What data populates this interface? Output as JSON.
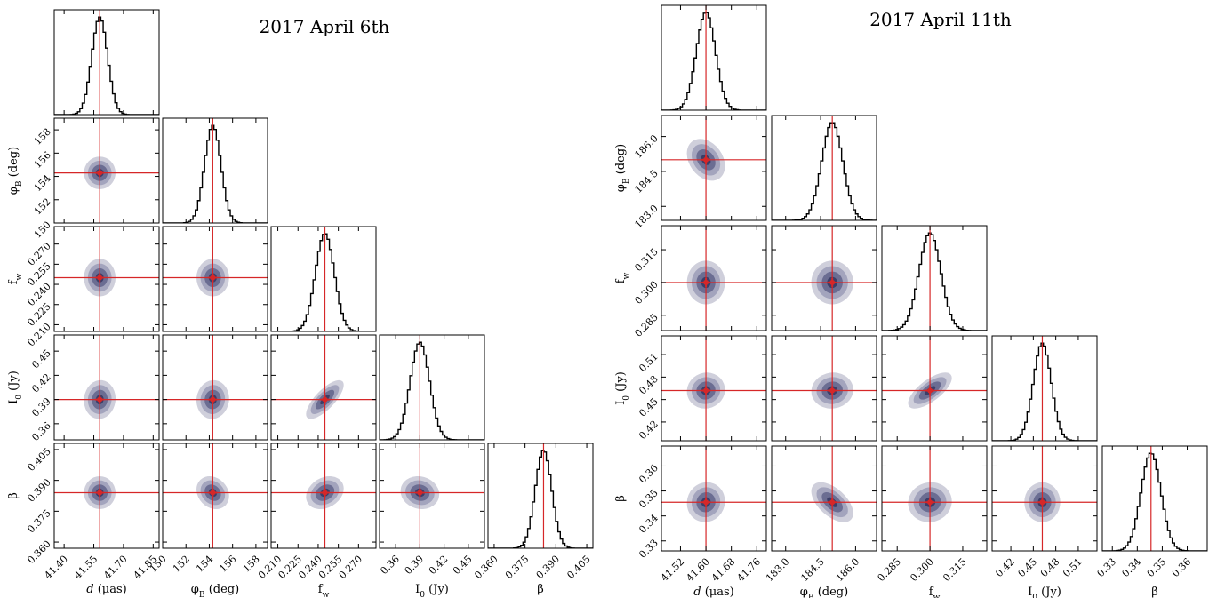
{
  "chart_data": [
    {
      "type": "corner",
      "title": "2017 April 6th",
      "parameters": [
        {
          "label": "d (μas)",
          "best": 41.58,
          "sigma": 0.04,
          "range": [
            41.35,
            41.88
          ],
          "ticks": [
            "41.40",
            "41.55",
            "41.70",
            "41.85"
          ],
          "tick_values": [
            41.4,
            41.55,
            41.7,
            41.85
          ]
        },
        {
          "label": "φB (deg)",
          "best": 154.3,
          "sigma": 0.7,
          "range": [
            150,
            159
          ],
          "ticks": [
            "150",
            "152",
            "154",
            "156",
            "158"
          ],
          "tick_values": [
            150,
            152,
            154,
            156,
            158
          ]
        },
        {
          "label": "fw",
          "best": 0.245,
          "sigma": 0.007,
          "range": [
            0.205,
            0.283
          ],
          "ticks": [
            "0.210",
            "0.225",
            "0.240",
            "0.255",
            "0.270"
          ],
          "tick_values": [
            0.21,
            0.225,
            0.24,
            0.255,
            0.27
          ]
        },
        {
          "label": "I0 (Jy)",
          "best": 0.39,
          "sigma": 0.012,
          "range": [
            0.34,
            0.47
          ],
          "ticks": [
            "0.36",
            "0.39",
            "0.42",
            "0.45"
          ],
          "tick_values": [
            0.36,
            0.39,
            0.42,
            0.45
          ]
        },
        {
          "label": "β",
          "best": 0.384,
          "sigma": 0.004,
          "range": [
            0.357,
            0.408
          ],
          "ticks": [
            "0.360",
            "0.375",
            "0.390",
            "0.405"
          ],
          "tick_values": [
            0.36,
            0.375,
            0.39,
            0.405
          ]
        }
      ],
      "correlations": [
        {
          "pair": [
            0,
            1
          ],
          "rho": 0.0
        },
        {
          "pair": [
            0,
            2
          ],
          "rho": 0.0
        },
        {
          "pair": [
            1,
            2
          ],
          "rho": 0.0
        },
        {
          "pair": [
            0,
            3
          ],
          "rho": 0.05
        },
        {
          "pair": [
            1,
            3
          ],
          "rho": 0.05
        },
        {
          "pair": [
            2,
            3
          ],
          "rho": 0.75
        },
        {
          "pair": [
            0,
            4
          ],
          "rho": 0.0
        },
        {
          "pair": [
            1,
            4
          ],
          "rho": -0.2
        },
        {
          "pair": [
            2,
            4
          ],
          "rho": 0.25
        },
        {
          "pair": [
            3,
            4
          ],
          "rho": -0.1
        }
      ],
      "contour_levels_sigma": [
        0.5,
        1.0,
        1.5,
        2.0
      ],
      "colors": {
        "contours": [
          "#cfcfdb",
          "#a3a4bd",
          "#6b6d92",
          "#3b3e68",
          "#08083a"
        ],
        "truth": "#d62728",
        "histogram": "#000000"
      }
    },
    {
      "type": "corner",
      "title": "2017 April 11th",
      "parameters": [
        {
          "label": "d (μas)",
          "best": 41.6,
          "sigma": 0.03,
          "range": [
            41.46,
            41.79
          ],
          "ticks": [
            "41.52",
            "41.60",
            "41.68",
            "41.76"
          ],
          "tick_values": [
            41.52,
            41.6,
            41.68,
            41.76
          ]
        },
        {
          "label": "φB (deg)",
          "best": 185.0,
          "sigma": 0.45,
          "range": [
            182.4,
            186.9
          ],
          "ticks": [
            "183.0",
            "184.5",
            "186.0"
          ],
          "tick_values": [
            183.0,
            184.5,
            186.0
          ]
        },
        {
          "label": "fw",
          "best": 0.3,
          "sigma": 0.005,
          "range": [
            0.278,
            0.326
          ],
          "ticks": [
            "0.285",
            "0.300",
            "0.315"
          ],
          "tick_values": [
            0.285,
            0.3,
            0.315
          ]
        },
        {
          "label": "I0 (Jy)",
          "best": 0.462,
          "sigma": 0.012,
          "range": [
            0.395,
            0.535
          ],
          "ticks": [
            "0.42",
            "0.45",
            "0.48",
            "0.51"
          ],
          "tick_values": [
            0.42,
            0.45,
            0.48,
            0.51
          ]
        },
        {
          "label": "β",
          "best": 0.3455,
          "sigma": 0.004,
          "range": [
            0.326,
            0.368
          ],
          "ticks": [
            "0.33",
            "0.34",
            "0.35",
            "0.36"
          ],
          "tick_values": [
            0.33,
            0.34,
            0.35,
            0.36
          ]
        }
      ],
      "correlations": [
        {
          "pair": [
            0,
            1
          ],
          "rho": -0.3
        },
        {
          "pair": [
            0,
            2
          ],
          "rho": 0.0
        },
        {
          "pair": [
            1,
            2
          ],
          "rho": 0.0
        },
        {
          "pair": [
            0,
            3
          ],
          "rho": 0.05
        },
        {
          "pair": [
            1,
            3
          ],
          "rho": 0.05
        },
        {
          "pair": [
            2,
            3
          ],
          "rho": 0.7
        },
        {
          "pair": [
            0,
            4
          ],
          "rho": 0.05
        },
        {
          "pair": [
            1,
            4
          ],
          "rho": -0.55
        },
        {
          "pair": [
            2,
            4
          ],
          "rho": 0.05
        },
        {
          "pair": [
            3,
            4
          ],
          "rho": 0.0
        }
      ],
      "contour_levels_sigma": [
        0.5,
        1.0,
        1.5,
        2.0
      ],
      "colors": {
        "contours": [
          "#cfcfdb",
          "#a3a4bd",
          "#6b6d92",
          "#3b3e68",
          "#08083a"
        ],
        "truth": "#d62728",
        "histogram": "#000000"
      }
    }
  ]
}
